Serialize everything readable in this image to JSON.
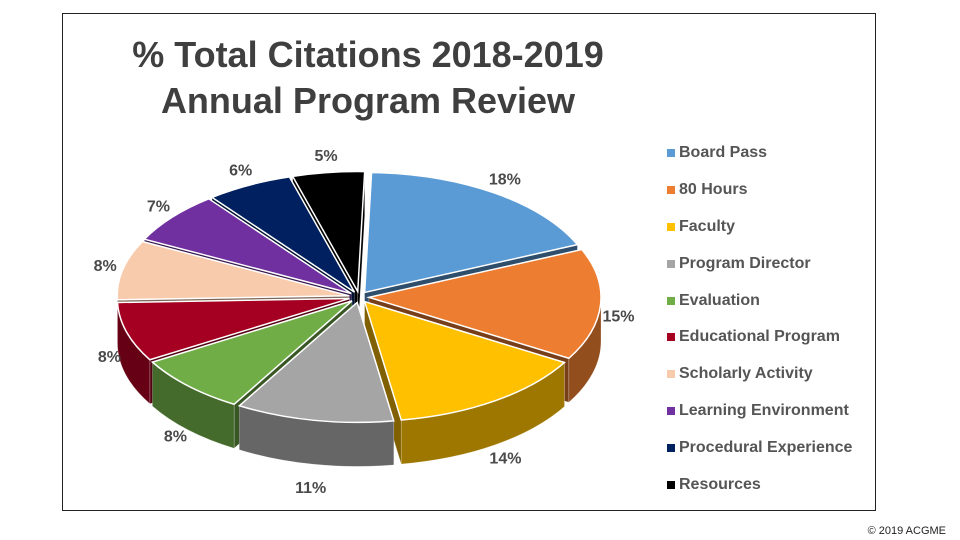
{
  "chart_data": {
    "type": "pie",
    "title": [
      "% Total Citations 2018-2019",
      "Annual Program Review"
    ],
    "categories": [
      "Board Pass",
      "80 Hours",
      "Faculty",
      "Program Director",
      "Evaluation",
      "Educational Program",
      "Scholarly Activity",
      "Learning Environment",
      "Procedural Experience",
      "Resources"
    ],
    "values": [
      18,
      15,
      14,
      11,
      8,
      8,
      8,
      7,
      6,
      5
    ],
    "value_labels": [
      "18%",
      "15%",
      "14%",
      "11%",
      "8%",
      "8%",
      "8%",
      "7%",
      "6%",
      "5%"
    ],
    "colors": [
      "#5b9bd5",
      "#ed7d31",
      "#ffc000",
      "#a5a5a5",
      "#70ad47",
      "#a50021",
      "#f8cbad",
      "#7030a0",
      "#002060",
      "#000000"
    ],
    "legend_position": "right",
    "style": "3d-exploded"
  },
  "footer": {
    "copyright": "© 2019 ACGME"
  }
}
